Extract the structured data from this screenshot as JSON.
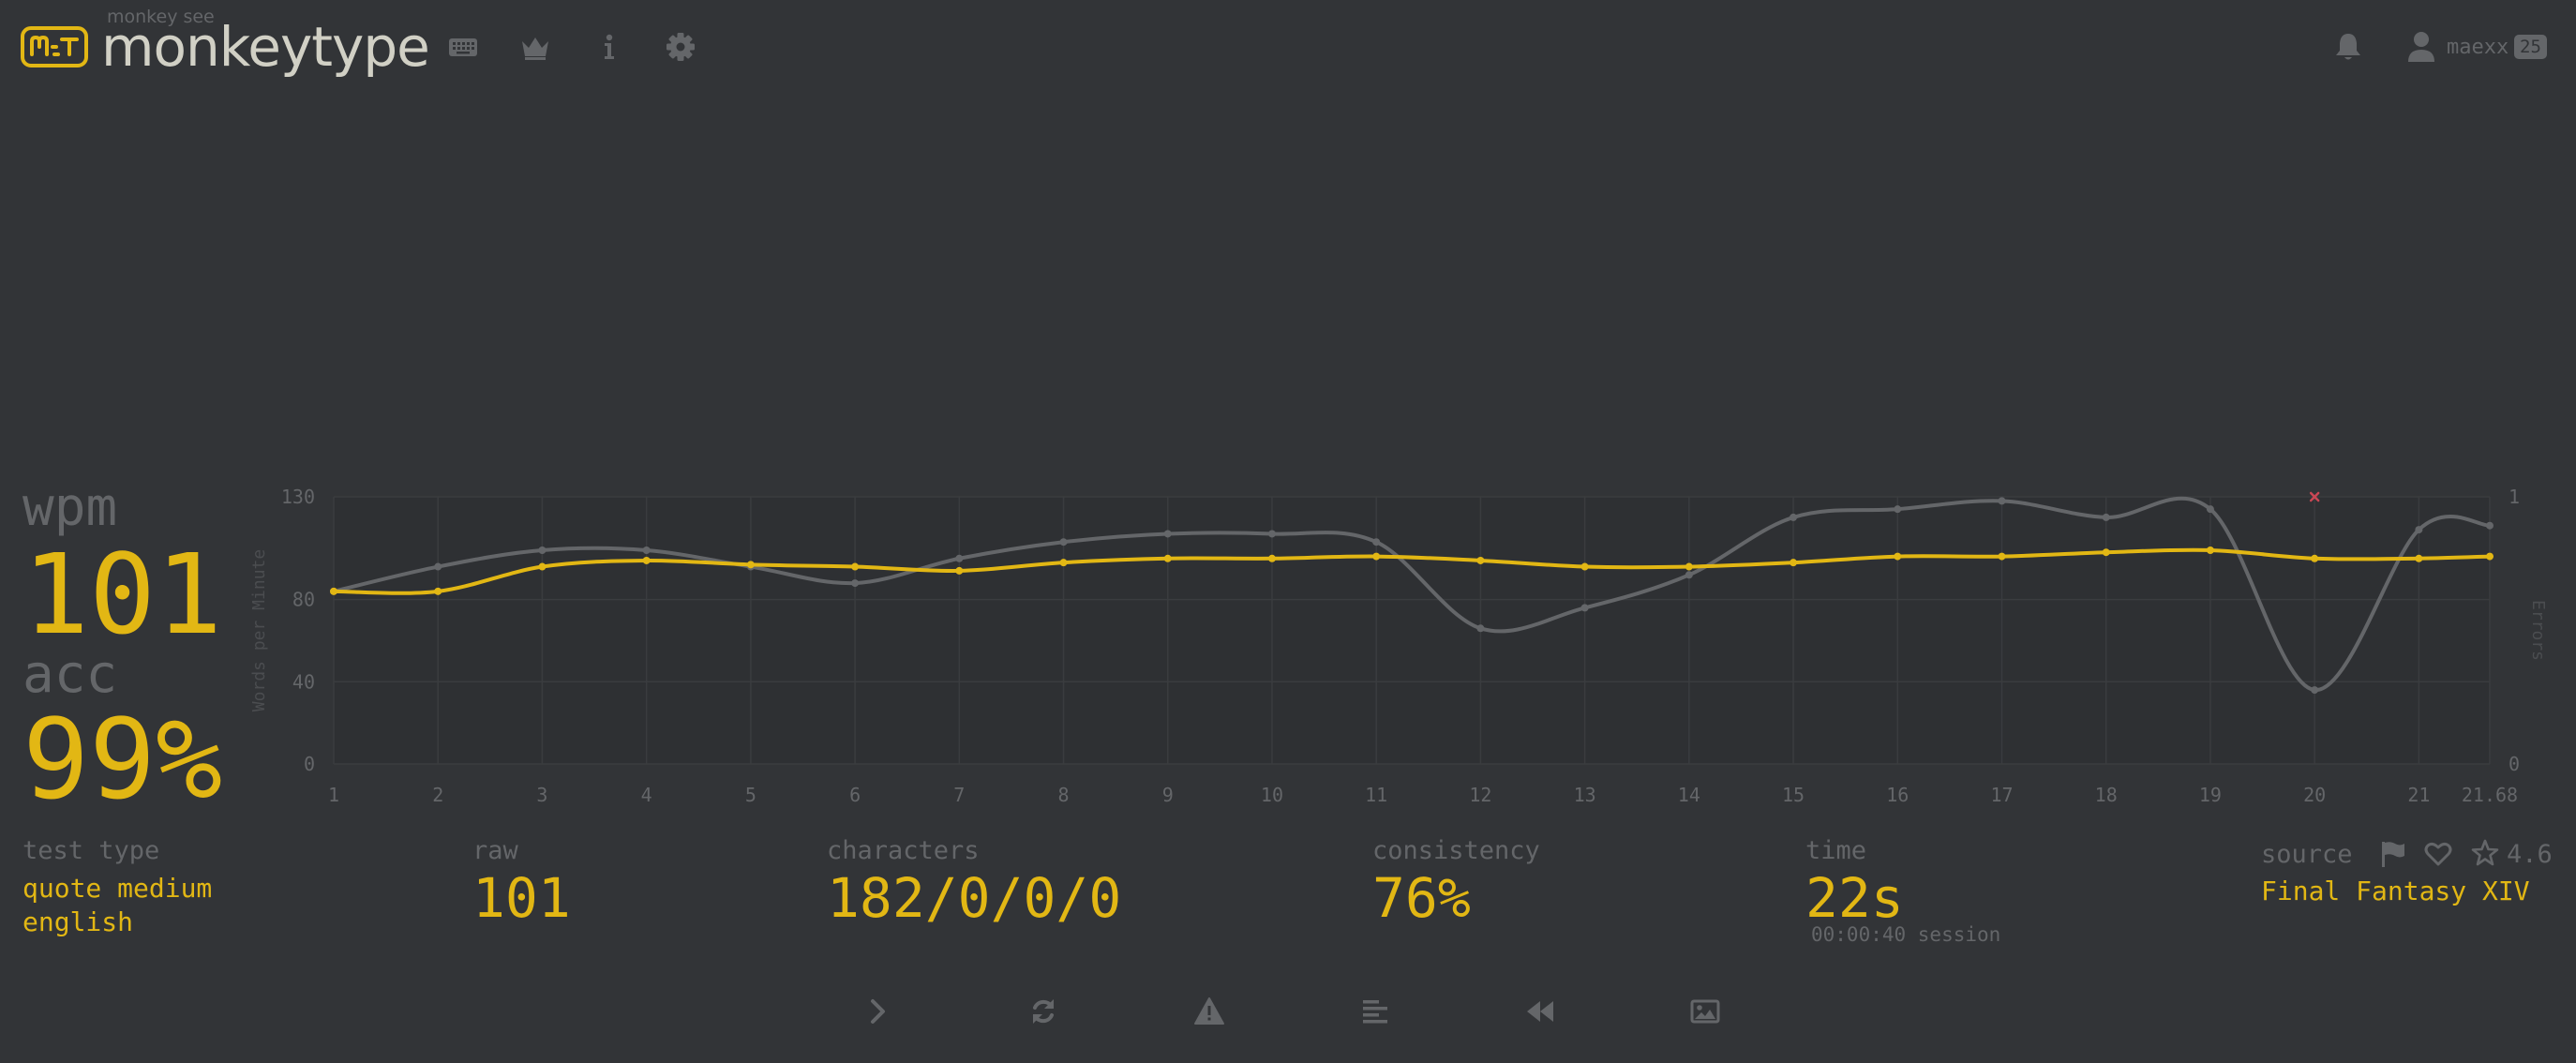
{
  "header": {
    "logo_sub": "monkey see",
    "logo_text": "monkeytype",
    "nav": [
      {
        "icon": "keyboard-icon"
      },
      {
        "icon": "crown-icon"
      },
      {
        "icon": "info-icon"
      },
      {
        "icon": "gear-icon"
      }
    ],
    "username": "maexx",
    "level": "25"
  },
  "result": {
    "wpm_label": "wpm",
    "wpm": "101",
    "acc_label": "acc",
    "acc": "99%",
    "test_type_label": "test type",
    "test_type": "quote medium",
    "language": "english",
    "raw_label": "raw",
    "raw": "101",
    "characters_label": "characters",
    "characters": "182/0/0/0",
    "consistency_label": "consistency",
    "consistency": "76%",
    "time_label": "time",
    "time": "22s",
    "session": "00:00:40 session",
    "source_label": "source",
    "rating": "4.6",
    "source": "Final Fantasy XIV"
  },
  "actions": [
    {
      "icon": "next-test-icon"
    },
    {
      "icon": "restart-icon"
    },
    {
      "icon": "warning-icon"
    },
    {
      "icon": "word-history-icon"
    },
    {
      "icon": "replay-icon"
    },
    {
      "icon": "screenshot-icon"
    }
  ],
  "colors": {
    "background": "#323437",
    "main": "#e2b714",
    "sub": "#646669",
    "text": "#d1d0c5",
    "error": "#ca4754"
  },
  "chart_data": {
    "type": "line",
    "ylabel": "Words per Minute",
    "y2label": "Errors",
    "x_ticks": [
      "1",
      "2",
      "3",
      "4",
      "5",
      "6",
      "7",
      "8",
      "9",
      "10",
      "11",
      "12",
      "13",
      "14",
      "15",
      "16",
      "17",
      "18",
      "19",
      "20",
      "21",
      "21.68"
    ],
    "ylim": [
      0,
      130
    ],
    "y_ticks": [
      "0",
      "40",
      "80",
      "130"
    ],
    "y2lim": [
      0,
      1
    ],
    "y2_ticks": [
      "0",
      "1"
    ],
    "x": [
      1,
      2,
      3,
      4,
      5,
      6,
      7,
      8,
      9,
      10,
      11,
      12,
      13,
      14,
      15,
      16,
      17,
      18,
      19,
      20,
      21,
      21.68
    ],
    "series": [
      {
        "values": [
          84,
          84,
          96,
          99,
          97,
          96,
          94,
          98,
          100,
          100,
          101,
          99,
          96,
          96,
          98,
          101,
          101,
          103,
          104,
          100,
          100,
          101
        ],
        "color": "#e2b714"
      },
      {
        "values": [
          84,
          96,
          104,
          104,
          96,
          88,
          100,
          108,
          112,
          112,
          108,
          66,
          76,
          92,
          120,
          124,
          128,
          120,
          124,
          36,
          114,
          116
        ],
        "color": "#646669"
      }
    ],
    "errors": [
      {
        "x": 20,
        "value": 1
      }
    ],
    "grid": true
  }
}
